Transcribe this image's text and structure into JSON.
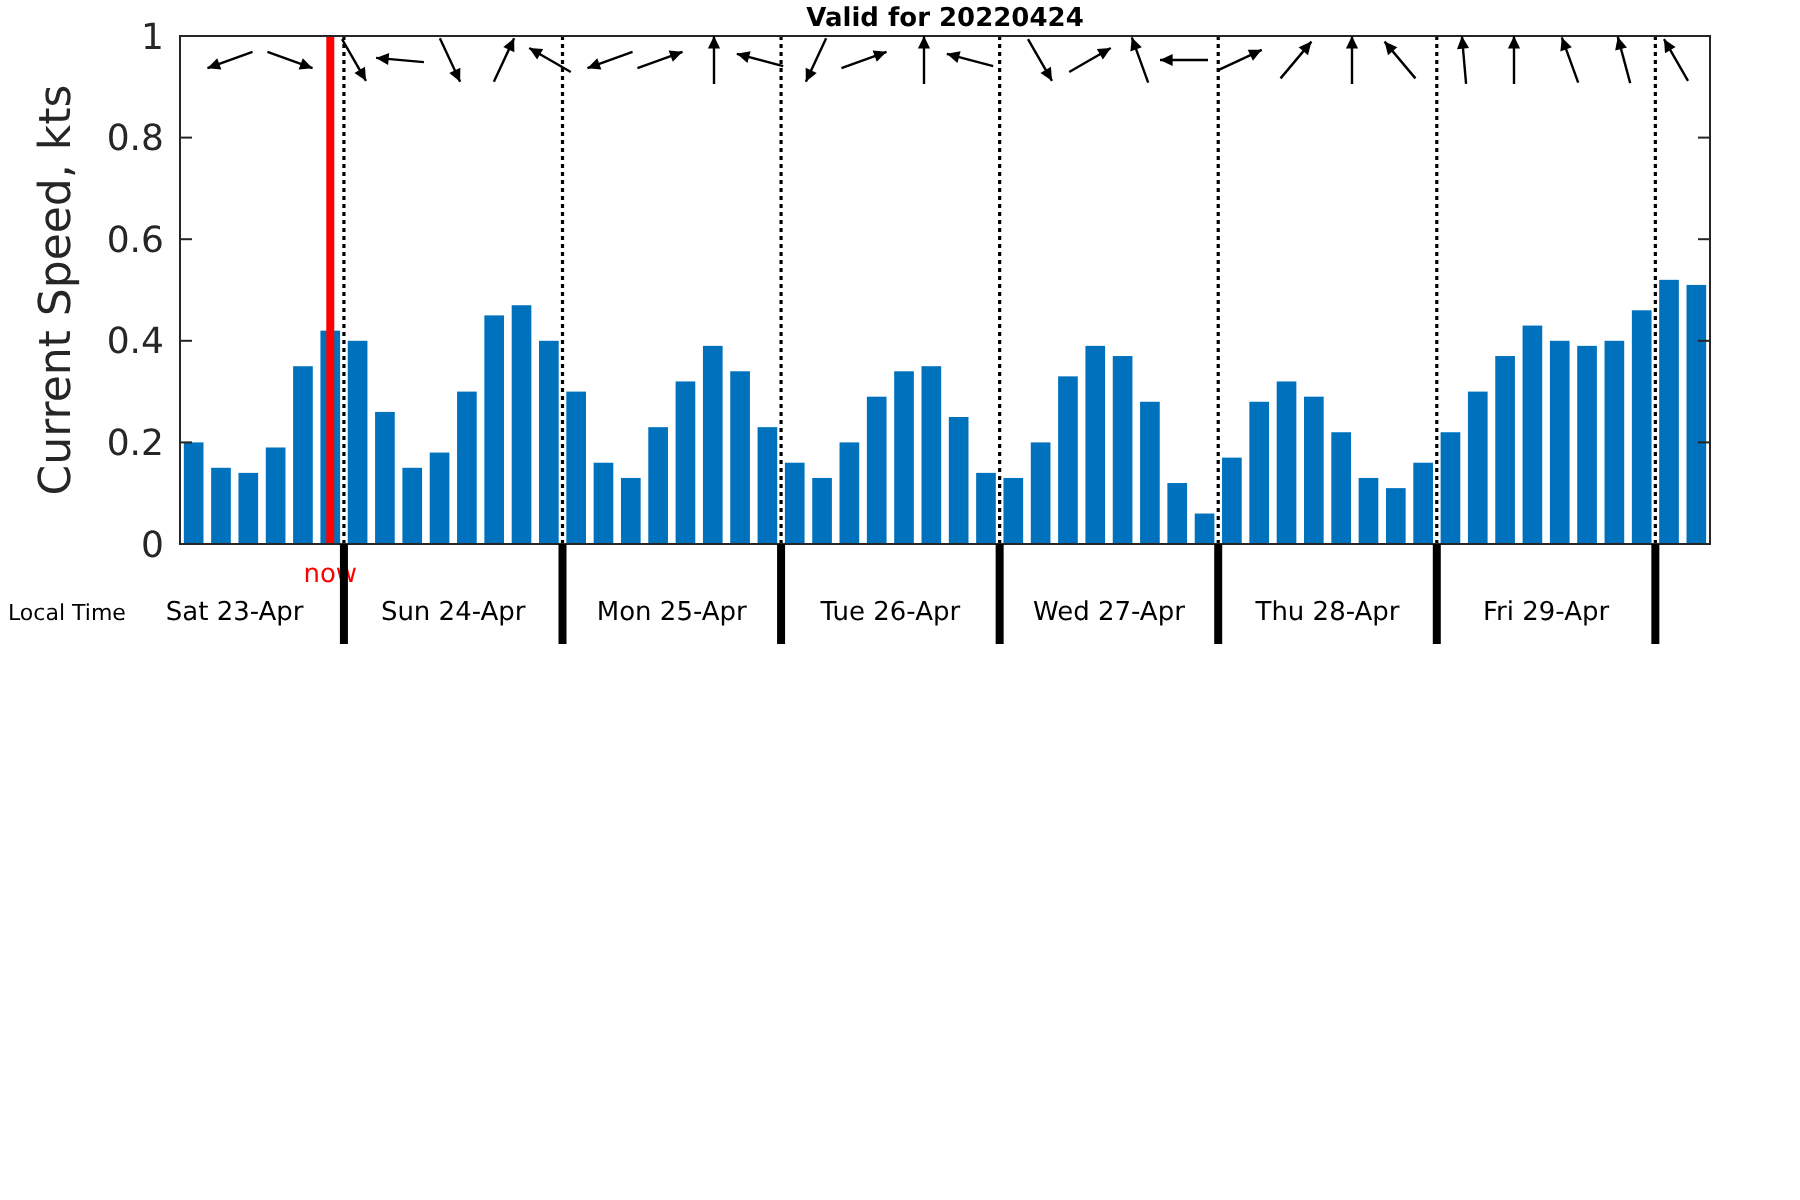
{
  "chart_data": {
    "type": "bar",
    "title": "Valid for 20220424",
    "ylabel": "Current Speed, kts",
    "x": [
      "2022-04-23T07:30",
      "2022-04-23T10:30",
      "2022-04-23T13:30",
      "2022-04-23T16:30",
      "2022-04-23T19:30",
      "2022-04-23T22:30",
      "2022-04-24T01:30",
      "2022-04-24T04:30",
      "2022-04-24T07:30",
      "2022-04-24T10:30",
      "2022-04-24T13:30",
      "2022-04-24T16:30",
      "2022-04-24T19:30",
      "2022-04-24T22:30",
      "2022-04-25T01:30",
      "2022-04-25T04:30",
      "2022-04-25T07:30",
      "2022-04-25T10:30",
      "2022-04-25T13:30",
      "2022-04-25T16:30",
      "2022-04-25T19:30",
      "2022-04-25T22:30",
      "2022-04-26T01:30",
      "2022-04-26T04:30",
      "2022-04-26T07:30",
      "2022-04-26T10:30",
      "2022-04-26T13:30",
      "2022-04-26T16:30",
      "2022-04-26T19:30",
      "2022-04-26T22:30",
      "2022-04-27T01:30",
      "2022-04-27T04:30",
      "2022-04-27T07:30",
      "2022-04-27T10:30",
      "2022-04-27T13:30",
      "2022-04-27T16:30",
      "2022-04-27T19:30",
      "2022-04-27T22:30",
      "2022-04-28T01:30",
      "2022-04-28T04:30",
      "2022-04-28T07:30",
      "2022-04-28T10:30",
      "2022-04-28T13:30",
      "2022-04-28T16:30",
      "2022-04-28T19:30",
      "2022-04-28T22:30",
      "2022-04-29T01:30",
      "2022-04-29T04:30",
      "2022-04-29T07:30",
      "2022-04-29T10:30",
      "2022-04-29T13:30",
      "2022-04-29T16:30",
      "2022-04-29T19:30",
      "2022-04-29T22:30",
      "2022-04-30T01:30",
      "2022-04-30T04:30"
    ],
    "values": [
      0.2,
      0.15,
      0.14,
      0.19,
      0.35,
      0.42,
      0.4,
      0.26,
      0.15,
      0.18,
      0.3,
      0.45,
      0.47,
      0.4,
      0.3,
      0.16,
      0.13,
      0.23,
      0.32,
      0.39,
      0.34,
      0.23,
      0.16,
      0.13,
      0.2,
      0.29,
      0.34,
      0.35,
      0.25,
      0.14,
      0.13,
      0.2,
      0.33,
      0.39,
      0.37,
      0.28,
      0.12,
      0.06,
      0.17,
      0.28,
      0.32,
      0.29,
      0.22,
      0.13,
      0.11,
      0.16,
      0.22,
      0.3,
      0.37,
      0.43,
      0.4,
      0.39,
      0.4,
      0.46,
      0.52,
      0.51
    ],
    "color": "#0072bd",
    "xlim": [
      "2022-04-23T06:00",
      "2022-04-30T06:00"
    ],
    "xticks": [
      {
        "value": "2022-04-23T12:00",
        "label": "Sat 23-Apr"
      },
      {
        "value": "2022-04-24",
        "label": null
      },
      {
        "value": "2022-04-24T12:00",
        "label": "Sun 24-Apr"
      },
      {
        "value": "2022-04-25",
        "label": null
      },
      {
        "value": "2022-04-25T12:00",
        "label": "Mon 25-Apr"
      },
      {
        "value": "2022-04-26",
        "label": null
      },
      {
        "value": "2022-04-26T12:00",
        "label": "Tue 26-Apr"
      },
      {
        "value": "2022-04-27",
        "label": null
      },
      {
        "value": "2022-04-27T12:00",
        "label": "Wed 27-Apr"
      },
      {
        "value": "2022-04-28",
        "label": null
      },
      {
        "value": "2022-04-28T12:00",
        "label": "Thu 28-Apr"
      },
      {
        "value": "2022-04-29",
        "label": null
      },
      {
        "value": "2022-04-29T12:00",
        "label": "Fri 29-Apr"
      },
      {
        "value": "2022-04-30",
        "label": null
      }
    ],
    "ylim": [
      0,
      1
    ],
    "yticks": [
      0,
      0.2,
      0.4,
      0.6,
      0.8,
      1
    ],
    "ref_lines": [
      {
        "axis": "x",
        "value": "2022-04-24",
        "color": "#000000",
        "line_style": "dotted"
      },
      {
        "axis": "x",
        "value": "2022-04-25",
        "color": "#000000",
        "line_style": "dotted"
      },
      {
        "axis": "x",
        "value": "2022-04-26",
        "color": "#000000",
        "line_style": "dotted"
      },
      {
        "axis": "x",
        "value": "2022-04-27",
        "color": "#000000",
        "line_style": "dotted"
      },
      {
        "axis": "x",
        "value": "2022-04-28",
        "color": "#000000",
        "line_style": "dotted"
      },
      {
        "axis": "x",
        "value": "2022-04-29",
        "color": "#000000",
        "line_style": "dotted"
      },
      {
        "axis": "x",
        "value": "2022-04-30",
        "color": "#000000",
        "line_style": "dotted"
      },
      {
        "axis": "x",
        "value": "2022-04-23T22:30",
        "color": "#ff0000",
        "line_style": "solid",
        "label": "now"
      }
    ],
    "annotations": [
      "Local Time"
    ],
    "grid": false
  }
}
